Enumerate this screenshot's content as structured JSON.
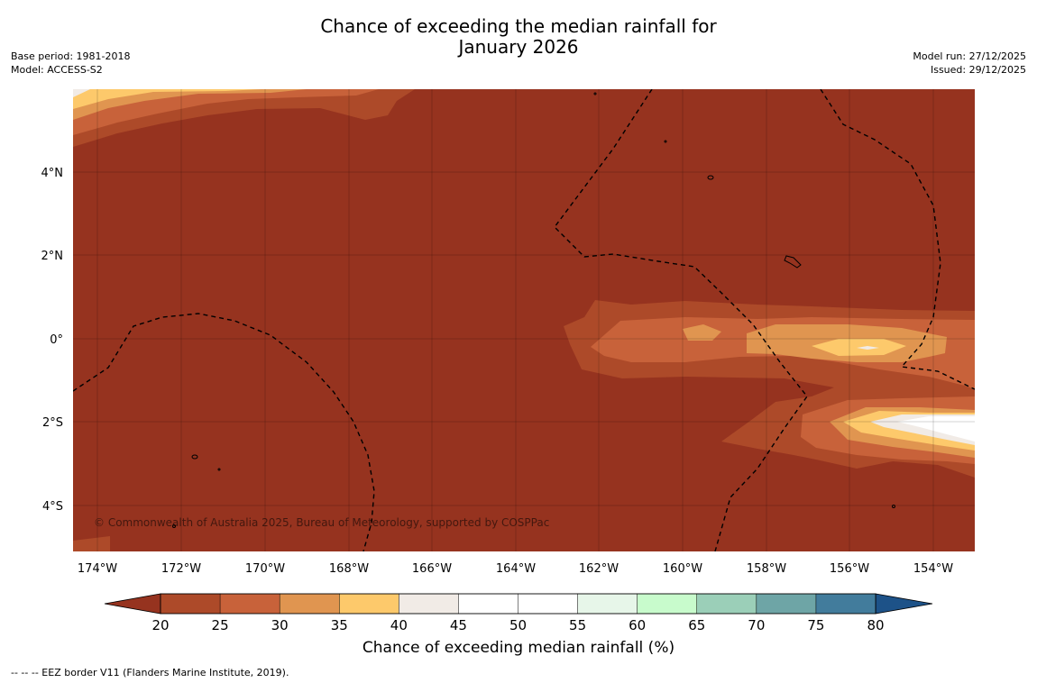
{
  "title_line1": "Chance of exceeding the median rainfall for",
  "title_line2": "January 2026",
  "base_period": "Base period: 1981-2018",
  "model": "Model: ACCESS-S2",
  "model_run": "Model run: 27/12/2025",
  "issued": "Issued: 29/12/2025",
  "copyright": "© Commonwealth of Australia 2025, Bureau of Meteorology, supported by COSPPac",
  "map": {
    "lat_labels": [
      "4°N",
      "2°N",
      "0°",
      "2°S",
      "4°S"
    ],
    "lon_labels": [
      "174°W",
      "172°W",
      "170°W",
      "168°W",
      "166°W",
      "164°W",
      "162°W",
      "160°W",
      "158°W",
      "156°W",
      "154°W"
    ],
    "background_color": "#96331f"
  },
  "colorbar": {
    "title": "Chance of exceeding median rainfall (%)",
    "ticks": [
      "20",
      "25",
      "30",
      "35",
      "40",
      "45",
      "50",
      "55",
      "60",
      "65",
      "70",
      "75",
      "80"
    ],
    "colors": [
      "#ad4a29",
      "#c8623a",
      "#e09550",
      "#fdc96b",
      "#f1ebe6",
      "#ffffff",
      "#ffffff",
      "#e7f6e9",
      "#c8fbcc",
      "#9bcfb8",
      "#6ea5a6",
      "#427c9c"
    ],
    "under_color": "#96331f",
    "over_color": "#1d5288"
  },
  "eez_note": "--  --  -- EEZ border V11 (Flanders Marine Institute, 2019)."
}
